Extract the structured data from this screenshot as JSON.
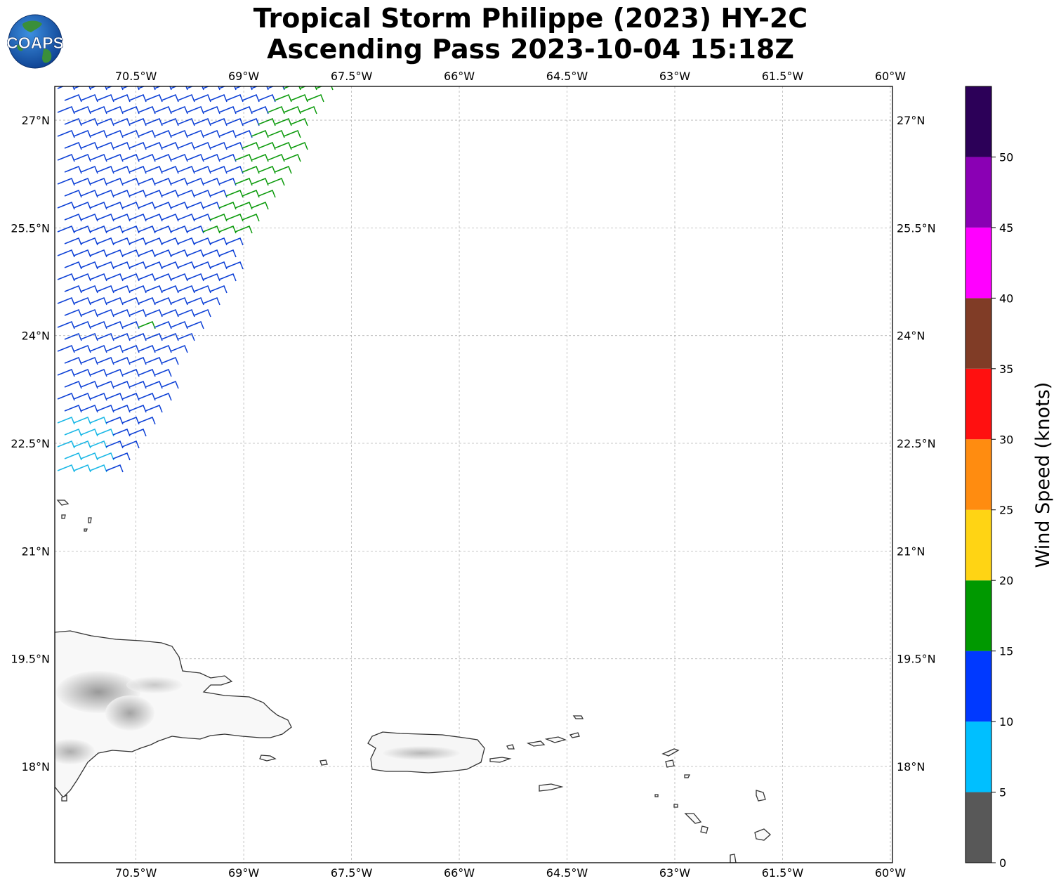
{
  "title": {
    "line1": "Tropical Storm Philippe (2023) HY-2C",
    "line2": "Ascending Pass 2023-10-04 15:18Z"
  },
  "logo": {
    "text": "COAPS",
    "icon": "globe-icon"
  },
  "map": {
    "lon_range": [
      -71.63,
      -59.97
    ],
    "lat_range": [
      16.66,
      27.47
    ],
    "x_ticks": [
      {
        "lon": -70.5,
        "label": "70.5°W"
      },
      {
        "lon": -69.0,
        "label": "69°W"
      },
      {
        "lon": -67.5,
        "label": "67.5°W"
      },
      {
        "lon": -66.0,
        "label": "66°W"
      },
      {
        "lon": -64.5,
        "label": "64.5°W"
      },
      {
        "lon": -63.0,
        "label": "63°W"
      },
      {
        "lon": -61.5,
        "label": "61.5°W"
      },
      {
        "lon": -60.0,
        "label": "60°W"
      }
    ],
    "y_ticks": [
      {
        "lat": 27.0,
        "label": "27°N"
      },
      {
        "lat": 25.5,
        "label": "25.5°N"
      },
      {
        "lat": 24.0,
        "label": "24°N"
      },
      {
        "lat": 22.5,
        "label": "22.5°N"
      },
      {
        "lat": 21.0,
        "label": "21°N"
      },
      {
        "lat": 19.5,
        "label": "19.5°N"
      },
      {
        "lat": 18.0,
        "label": "18°N"
      }
    ],
    "grid": true,
    "wind_swath": {
      "description_units": "knots",
      "regions": [
        {
          "color": "#0b3fd6",
          "speed_range": [
            10,
            15
          ]
        },
        {
          "color": "#0a9a0a",
          "speed_range": [
            15,
            20
          ]
        },
        {
          "color": "#18b7e6",
          "speed_range": [
            5,
            10
          ]
        }
      ]
    }
  },
  "colorbar": {
    "label": "Wind Speed (knots)",
    "bins": [
      {
        "from": 0,
        "to": 5,
        "color": "#585858"
      },
      {
        "from": 5,
        "to": 10,
        "color": "#00bfff"
      },
      {
        "from": 10,
        "to": 15,
        "color": "#0039ff"
      },
      {
        "from": 15,
        "to": 20,
        "color": "#009900"
      },
      {
        "from": 20,
        "to": 25,
        "color": "#ffd414"
      },
      {
        "from": 25,
        "to": 30,
        "color": "#ff8c10"
      },
      {
        "from": 30,
        "to": 35,
        "color": "#ff1010"
      },
      {
        "from": 35,
        "to": 40,
        "color": "#803c26"
      },
      {
        "from": 40,
        "to": 45,
        "color": "#ff00ff"
      },
      {
        "from": 45,
        "to": 50,
        "color": "#8a00b4"
      },
      {
        "from": 50,
        "to": 55,
        "color": "#2c0058"
      }
    ],
    "ticks": [
      {
        "value": 0,
        "label": "0"
      },
      {
        "value": 5,
        "label": "5"
      },
      {
        "value": 10,
        "label": "10"
      },
      {
        "value": 15,
        "label": "15"
      },
      {
        "value": 20,
        "label": "20"
      },
      {
        "value": 25,
        "label": "25"
      },
      {
        "value": 30,
        "label": "30"
      },
      {
        "value": 35,
        "label": "35"
      },
      {
        "value": 40,
        "label": "40"
      },
      {
        "value": 45,
        "label": "45"
      },
      {
        "value": 50,
        "label": "50"
      }
    ]
  }
}
